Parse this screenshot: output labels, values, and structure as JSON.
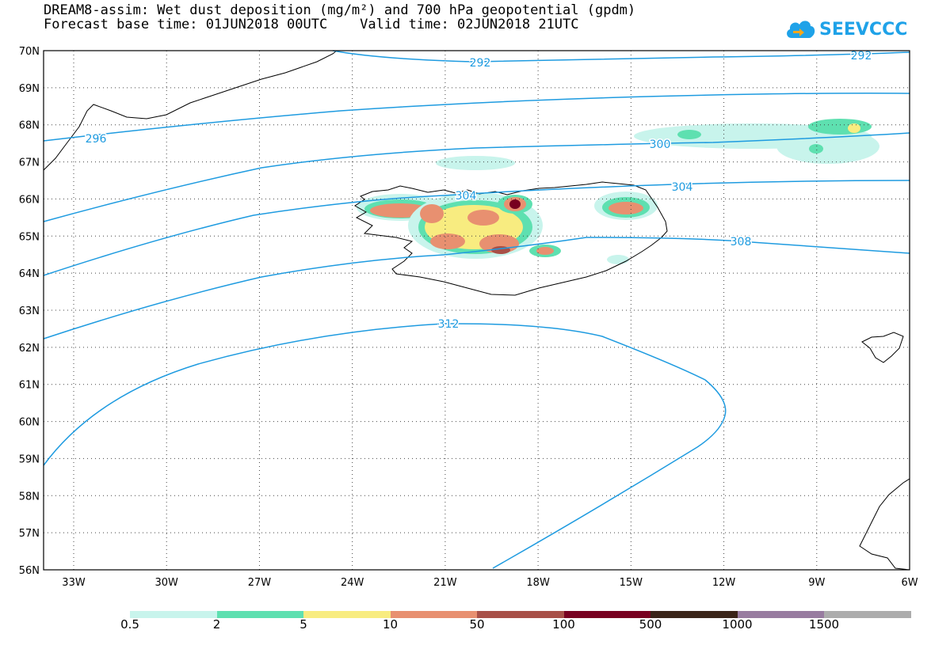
{
  "title_line1": "DREAM8-assim: Wet dust deposition (mg/m²) and 700 hPa geopotential (gpdm)",
  "title_line2": "Forecast base time: 01JUN2018 00UTC    Valid time: 02JUN2018 21UTC",
  "logo_text": "SEEVCCC",
  "map": {
    "lat_labels": [
      "70N",
      "69N",
      "68N",
      "67N",
      "66N",
      "65N",
      "64N",
      "63N",
      "62N",
      "61N",
      "60N",
      "59N",
      "58N",
      "57N",
      "56N"
    ],
    "lon_labels": [
      "33W",
      "30W",
      "27W",
      "24W",
      "21W",
      "18W",
      "15W",
      "12W",
      "9W",
      "6W"
    ],
    "contour_labels": [
      {
        "text": "292",
        "value": 292
      },
      {
        "text": "292",
        "value": 292
      },
      {
        "text": "296",
        "value": 296
      },
      {
        "text": "300",
        "value": 300
      },
      {
        "text": "304",
        "value": 304
      },
      {
        "text": "304",
        "value": 304
      },
      {
        "text": "308",
        "value": 308
      },
      {
        "text": "312",
        "value": 312
      }
    ],
    "contour_color": "#1e9be0",
    "coast_color": "#000000"
  },
  "colorbar": {
    "labels": [
      "0.5",
      "2",
      "5",
      "10",
      "50",
      "100",
      "500",
      "1000",
      "1500"
    ],
    "colors": [
      "#c8f4ec",
      "#5ee0b0",
      "#f8ec80",
      "#e89070",
      "#a85048",
      "#780020",
      "#3a2418",
      "#987ca0",
      "#acacac"
    ]
  }
}
